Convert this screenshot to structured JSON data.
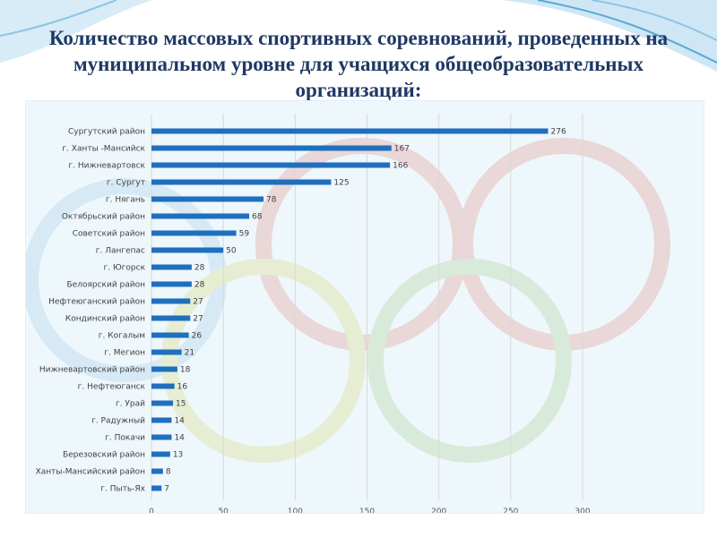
{
  "slide": {
    "title": "Количество массовых спортивных соревнований, проведенных на муниципальном уровне для учащихся общеобразовательных организаций:"
  },
  "colors": {
    "bar": "#1f6fbf",
    "title": "#1f3864",
    "grid": "#d9d9d9",
    "background_wave": "#5aa8d6"
  },
  "chart_data": {
    "type": "bar",
    "orientation": "horizontal",
    "title": "",
    "xlabel": "",
    "ylabel": "",
    "xlim": [
      0,
      300
    ],
    "ticks": [
      0,
      50,
      100,
      150,
      200,
      250,
      300
    ],
    "grid": true,
    "legend": "none",
    "categories": [
      "Сургутский район",
      "г. Ханты -Мансийск",
      "г. Нижневартовск",
      "г. Сургут",
      "г. Нягань",
      "Октябрьский район",
      "Советский район",
      "г. Лангепас",
      "г. Югорск",
      "Белоярский район",
      "Нефтеюганский район",
      "Кондинский район",
      "г. Когалым",
      "г. Мегион",
      "Нижневартовский район",
      "г. Нефтеюганск",
      "г. Урай",
      "г. Радужный",
      "г. Покачи",
      "Березовский район",
      "Ханты-Мансийский район",
      "г. Пыть-Ях"
    ],
    "values": [
      276,
      167,
      166,
      125,
      78,
      68,
      59,
      50,
      28,
      28,
      27,
      27,
      26,
      21,
      18,
      16,
      15,
      14,
      14,
      13,
      8,
      7
    ]
  }
}
